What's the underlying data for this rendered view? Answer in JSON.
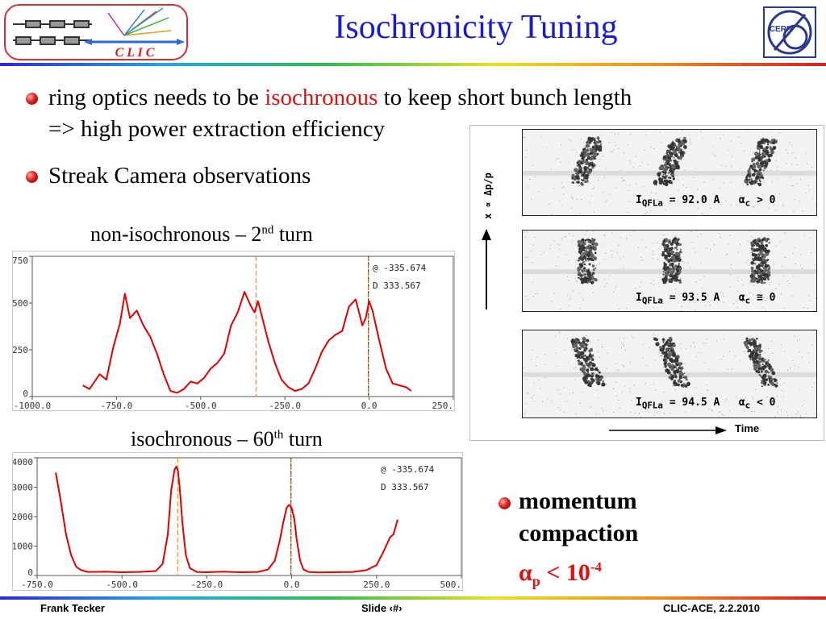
{
  "header": {
    "title": "Isochronicity Tuning",
    "clic_logo_text": "C L I C",
    "cern_logo_text": "CERN"
  },
  "bullets": [
    {
      "pre": "ring optics needs to be ",
      "highlight": "isochronous",
      "post": " to keep short bunch length"
    },
    {
      "text": "=> high power extraction efficiency"
    },
    {
      "text": "Streak Camera observations"
    }
  ],
  "captions": {
    "top_pre": "non-isochronous – 2",
    "top_sup": "nd",
    "top_post": " turn",
    "bottom_pre": "isochronous – 60",
    "bottom_sup": "th",
    "bottom_post": " turn"
  },
  "momentum": {
    "line1": "momentum",
    "line2": "compaction",
    "alpha": "α",
    "sub": "p",
    "rel": " < 10",
    "exp": "-4"
  },
  "footer": {
    "left": "Frank Tecker",
    "center": "Slide ‹#›",
    "right": "CLIC-ACE, 2.2.2010"
  },
  "streak": {
    "yaxis_label": "x ∝ Δp/p",
    "time_label": "Time",
    "panels": [
      {
        "current": "I",
        "current_sub": "QFLa",
        "value": " = 92.0 A",
        "alpha": "α",
        "alpha_sub": "c",
        "cond": " > 0"
      },
      {
        "current": "I",
        "current_sub": "QFLa",
        "value": " = 93.5 A",
        "alpha": "α",
        "alpha_sub": "c",
        "cond": " ≅ 0"
      },
      {
        "current": "I",
        "current_sub": "QFLa",
        "value": " = 94.5 A",
        "alpha": "α",
        "alpha_sub": "c",
        "cond": " < 0"
      }
    ]
  },
  "chart_data": [
    {
      "type": "line",
      "title": "non-isochronous – 2nd turn",
      "xlim": [
        -1000,
        250
      ],
      "ylim": [
        0,
        750
      ],
      "xticks": [
        "-1000.0",
        "-750.0",
        "-500.0",
        "-250.0",
        "0.0",
        "250."
      ],
      "yticks": [
        "0",
        "250",
        "500",
        "750"
      ],
      "cursor_text": [
        "@ -335.674",
        "D 333.567"
      ],
      "markers_x": [
        -335.674,
        -2.107
      ],
      "series": [
        {
          "color": "#e00000",
          "x": [
            -850,
            -830,
            -800,
            -780,
            -760,
            -740,
            -725,
            -710,
            -690,
            -670,
            -650,
            -630,
            -610,
            -590,
            -570,
            -550,
            -530,
            -510,
            -490,
            -470,
            -450,
            -430,
            -410,
            -390,
            -370,
            -350,
            -340,
            -330,
            -320,
            -300,
            -280,
            -260,
            -240,
            -220,
            -200,
            -180,
            -160,
            -140,
            -120,
            -100,
            -80,
            -60,
            -40,
            -20,
            -10,
            0,
            10,
            30,
            50,
            70,
            90,
            110,
            125
          ],
          "y": [
            60,
            40,
            120,
            90,
            260,
            390,
            550,
            420,
            460,
            380,
            320,
            230,
            120,
            30,
            20,
            40,
            80,
            70,
            100,
            150,
            180,
            230,
            380,
            450,
            560,
            480,
            450,
            510,
            440,
            300,
            180,
            90,
            50,
            30,
            40,
            70,
            150,
            240,
            300,
            330,
            350,
            480,
            520,
            380,
            420,
            510,
            460,
            300,
            150,
            70,
            60,
            50,
            30
          ]
        }
      ]
    },
    {
      "type": "line",
      "title": "isochronous – 60th turn",
      "xlim": [
        -750,
        500
      ],
      "ylim": [
        0,
        4000
      ],
      "xticks": [
        "-750.0",
        "-500.0",
        "-250.0",
        "0.0",
        "250.0",
        "500."
      ],
      "yticks": [
        "0",
        "1000",
        "2000",
        "3000",
        "4000"
      ],
      "cursor_text": [
        "@ -335.674",
        "D 333.567"
      ],
      "markers_x": [
        -335.674,
        -2.107
      ],
      "series": [
        {
          "color": "#e00000",
          "x": [
            -695,
            -680,
            -665,
            -650,
            -635,
            -620,
            -600,
            -550,
            -500,
            -450,
            -400,
            -380,
            -365,
            -355,
            -345,
            -340,
            -335,
            -330,
            -322,
            -312,
            -300,
            -280,
            -250,
            -200,
            -150,
            -100,
            -70,
            -50,
            -35,
            -25,
            -15,
            -8,
            0,
            8,
            15,
            25,
            35,
            50,
            80,
            120,
            180,
            220,
            250,
            270,
            290,
            300,
            312
          ],
          "y": [
            3500,
            2500,
            1400,
            700,
            300,
            180,
            120,
            130,
            110,
            120,
            150,
            400,
            1400,
            2900,
            3600,
            3700,
            3550,
            3000,
            1800,
            700,
            250,
            120,
            110,
            130,
            110,
            120,
            200,
            500,
            1200,
            1800,
            2300,
            2400,
            2300,
            1900,
            1200,
            500,
            200,
            120,
            100,
            110,
            120,
            180,
            350,
            800,
            1300,
            1400,
            1900
          ]
        }
      ]
    }
  ]
}
